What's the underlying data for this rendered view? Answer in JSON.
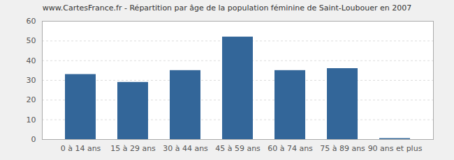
{
  "chart_data": {
    "type": "bar",
    "title": "www.CartesFrance.fr - Répartition par âge de la population féminine de Saint-Loubouer en 2007",
    "categories": [
      "0 à 14 ans",
      "15 à 29 ans",
      "30 à 44 ans",
      "45 à 59 ans",
      "60 à 74 ans",
      "75 à 89 ans",
      "90 ans et plus"
    ],
    "values": [
      33,
      29,
      35,
      52,
      35,
      36,
      0.5
    ],
    "color": "#336699",
    "ylim": [
      0,
      60
    ],
    "yticks": [
      0,
      10,
      20,
      30,
      40,
      50,
      60
    ],
    "grid": true
  }
}
